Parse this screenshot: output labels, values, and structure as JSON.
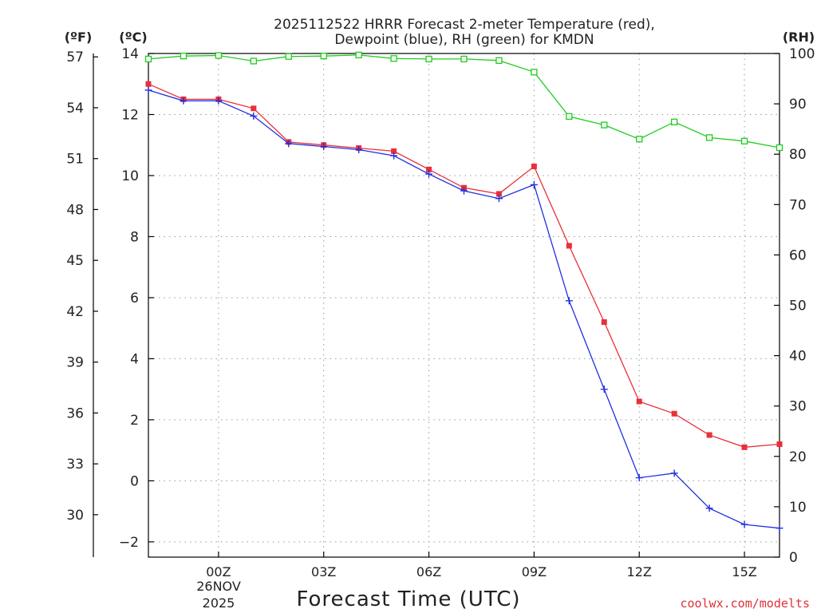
{
  "chart_data": {
    "type": "line",
    "title": {
      "line1": "2025112522 HRRR Forecast 2-meter Temperature (red),",
      "line2": "Dewpoint (blue), RH (green) for KMDN"
    },
    "xlabel": "Forecast Time (UTC)",
    "x": [
      22,
      23,
      24,
      25,
      26,
      27,
      28,
      29,
      30,
      31,
      32,
      33,
      34,
      35,
      36,
      37,
      38,
      39,
      40
    ],
    "xlim": [
      22,
      40
    ],
    "x_ticks": [
      {
        "value": 24,
        "label": "00Z"
      },
      {
        "value": 27,
        "label": "03Z"
      },
      {
        "value": 30,
        "label": "06Z"
      },
      {
        "value": 33,
        "label": "09Z"
      },
      {
        "value": 36,
        "label": "12Z"
      },
      {
        "value": 39,
        "label": "15Z"
      }
    ],
    "x_date": {
      "day": "26NOV",
      "year": "2025"
    },
    "y_left_celsius": {
      "unit": "(ºC)",
      "ylim": [
        -2.5,
        14
      ],
      "ticks": [
        -2,
        0,
        2,
        4,
        6,
        8,
        10,
        12,
        14
      ]
    },
    "y_left_fahrenheit": {
      "unit": "(ºF)",
      "ticks": [
        30,
        33,
        36,
        39,
        42,
        45,
        48,
        51,
        54,
        57
      ]
    },
    "y_right_rh": {
      "unit": "(RH)",
      "ylim": [
        0,
        100
      ],
      "ticks": [
        0,
        10,
        20,
        30,
        40,
        50,
        60,
        70,
        80,
        90,
        100
      ]
    },
    "series": [
      {
        "name": "Temperature",
        "axis": "celsius",
        "color": "#e8303a",
        "marker": "filled-square",
        "values": [
          13.0,
          12.5,
          12.5,
          12.2,
          11.1,
          11.0,
          10.9,
          10.8,
          10.2,
          9.6,
          9.4,
          10.3,
          7.7,
          5.2,
          2.6,
          2.2,
          1.5,
          1.1,
          1.2
        ]
      },
      {
        "name": "Dewpoint",
        "axis": "celsius",
        "color": "#2030e0",
        "marker": "plus",
        "values": [
          12.8,
          12.45,
          12.45,
          11.95,
          11.05,
          10.95,
          10.85,
          10.65,
          10.05,
          9.5,
          9.25,
          9.7,
          5.9,
          3.0,
          0.1,
          0.25,
          -0.9,
          -1.43,
          -1.55
        ]
      },
      {
        "name": "RH",
        "axis": "rh",
        "color": "#20cc20",
        "marker": "open-square",
        "values": [
          98.9,
          99.5,
          99.6,
          98.5,
          99.4,
          99.5,
          99.7,
          99.0,
          98.9,
          98.9,
          98.6,
          96.3,
          87.5,
          85.8,
          83.0,
          86.4,
          83.3,
          82.6,
          81.3
        ]
      }
    ]
  },
  "footer": {
    "credit": "coolwx.com/modelts"
  },
  "colors": {
    "grid": "#999999",
    "axis": "#000000",
    "credit": "#e0303a"
  }
}
